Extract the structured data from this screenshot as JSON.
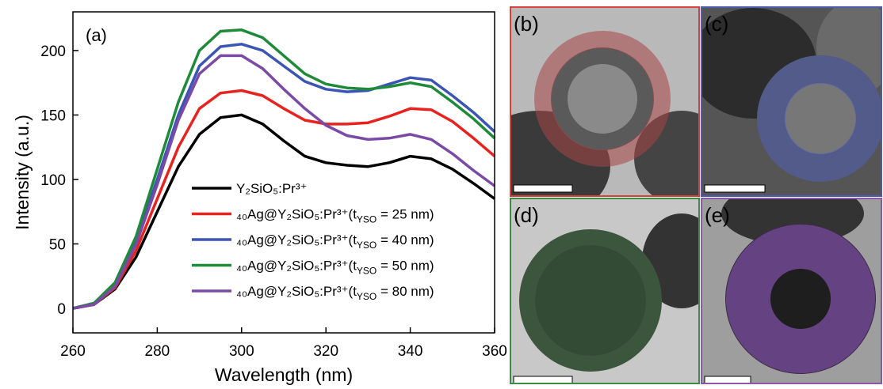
{
  "chart_data": {
    "type": "line",
    "xlabel": "Wavelength (nm)",
    "ylabel": "Intensity (a.u.)",
    "annotation": "(a)",
    "x": [
      260,
      265,
      270,
      275,
      280,
      285,
      290,
      295,
      300,
      305,
      310,
      315,
      320,
      325,
      330,
      335,
      340,
      345,
      350,
      355,
      360
    ],
    "xlim": [
      260,
      360
    ],
    "xticks": [
      260,
      280,
      300,
      320,
      340,
      360
    ],
    "ylim": [
      -19,
      230
    ],
    "yticks": [
      0,
      50,
      100,
      150,
      200
    ],
    "series": [
      {
        "name": "Y₂SiO₅:Pr³⁺",
        "color": "#000000",
        "values": [
          0,
          3,
          15,
          40,
          75,
          110,
          135,
          148,
          150,
          143,
          130,
          118,
          113,
          111,
          110,
          113,
          118,
          116,
          108,
          97,
          85
        ]
      },
      {
        "name": "₄₀Ag@Y₂SiO₅:Pr³⁺(tYSO = 25 nm)",
        "color": "#e8231f",
        "values": [
          0,
          3,
          16,
          45,
          85,
          125,
          155,
          167,
          169,
          165,
          155,
          146,
          143,
          143,
          144,
          149,
          155,
          154,
          145,
          132,
          118
        ]
      },
      {
        "name": "₄₀Ag@Y₂SiO₅:Pr³⁺(tYSO = 40 nm)",
        "color": "#3a55b4",
        "values": [
          0,
          4,
          18,
          52,
          100,
          150,
          188,
          203,
          205,
          200,
          188,
          176,
          170,
          168,
          169,
          174,
          179,
          177,
          165,
          152,
          137
        ]
      },
      {
        "name": "₄₀Ag@Y₂SiO₅:Pr³⁺(tYSO = 50 nm)",
        "color": "#1f8b3a",
        "values": [
          0,
          4,
          20,
          56,
          108,
          160,
          200,
          215,
          216,
          210,
          196,
          182,
          174,
          171,
          170,
          172,
          175,
          172,
          160,
          147,
          132
        ]
      },
      {
        "name": "₄₀Ag@Y₂SiO₅:Pr³⁺(tYSO = 80 nm)",
        "color": "#7b4aa6",
        "values": [
          0,
          3,
          17,
          50,
          96,
          146,
          182,
          196,
          196,
          186,
          170,
          155,
          142,
          134,
          131,
          132,
          135,
          131,
          120,
          107,
          95
        ]
      }
    ]
  },
  "panels": [
    {
      "label": "(b)",
      "color": "#d9403b"
    },
    {
      "label": "(c)",
      "color": "#4a5bb0"
    },
    {
      "label": "(d)",
      "color": "#3e8a46"
    },
    {
      "label": "(e)",
      "color": "#8a5aa8"
    }
  ]
}
